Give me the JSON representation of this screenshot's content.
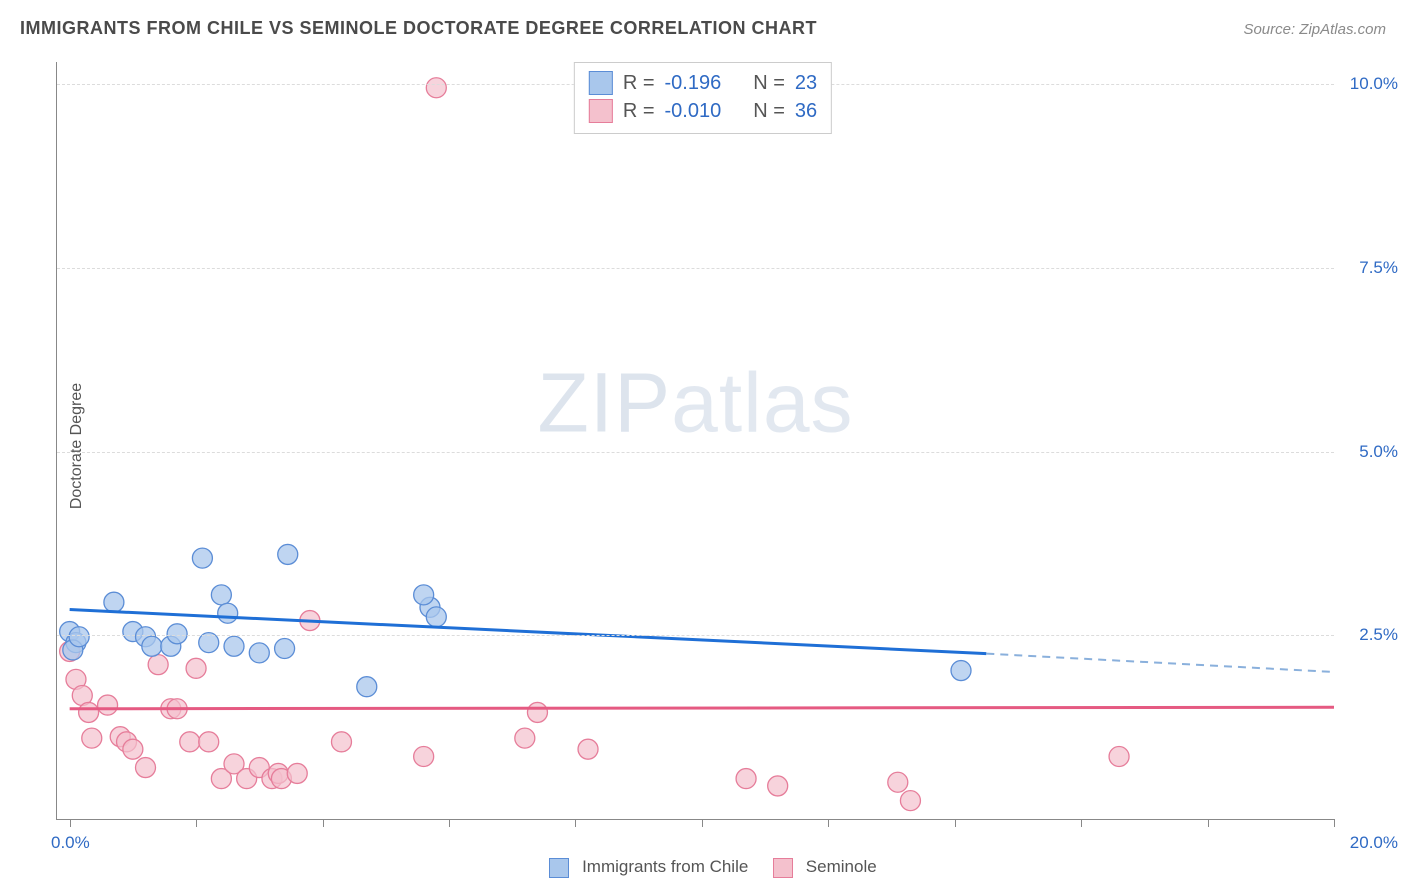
{
  "header": {
    "title": "IMMIGRANTS FROM CHILE VS SEMINOLE DOCTORATE DEGREE CORRELATION CHART",
    "source_label": "Source: ZipAtlas.com"
  },
  "watermark": {
    "bold": "ZIP",
    "light": "atlas"
  },
  "axes": {
    "y_title": "Doctorate Degree",
    "y_ticks": [
      {
        "value": 2.5,
        "label": "2.5%"
      },
      {
        "value": 5.0,
        "label": "5.0%"
      },
      {
        "value": 7.5,
        "label": "7.5%"
      },
      {
        "value": 10.0,
        "label": "10.0%"
      }
    ],
    "y_min": 0.0,
    "y_max": 10.3,
    "x_min": -0.2,
    "x_max": 20.0,
    "x_label_min": "0.0%",
    "x_label_max": "20.0%",
    "x_tick_positions": [
      0,
      2,
      4,
      6,
      8,
      10,
      12,
      14,
      16,
      18,
      20
    ],
    "grid_color": "#dcdcdc",
    "axis_color": "#888888"
  },
  "series": {
    "chile": {
      "label": "Immigrants from Chile",
      "fill_color": "#a9c7ec",
      "stroke_color": "#5b8dd6",
      "opacity": 0.75,
      "marker_radius": 10,
      "trend_line": {
        "x1": 0.0,
        "y1": 2.85,
        "x2": 14.5,
        "y2": 2.25,
        "color": "#1f6fd6",
        "width": 3
      },
      "trend_dash": {
        "x1": 14.5,
        "y1": 2.25,
        "x2": 20.0,
        "y2": 2.0,
        "color": "#8ab0dc",
        "width": 2,
        "dash": "8 6"
      },
      "R_label": "R =",
      "R_value": "-0.196",
      "N_label": "N =",
      "N_value": "23",
      "points": [
        [
          0.0,
          2.55
        ],
        [
          0.1,
          2.4
        ],
        [
          0.05,
          2.3
        ],
        [
          0.15,
          2.48
        ],
        [
          0.7,
          2.95
        ],
        [
          1.0,
          2.55
        ],
        [
          1.2,
          2.48
        ],
        [
          1.3,
          2.35
        ],
        [
          1.6,
          2.35
        ],
        [
          1.7,
          2.52
        ],
        [
          2.1,
          3.55
        ],
        [
          2.2,
          2.4
        ],
        [
          2.4,
          3.05
        ],
        [
          2.5,
          2.8
        ],
        [
          2.6,
          2.35
        ],
        [
          3.0,
          2.26
        ],
        [
          3.45,
          3.6
        ],
        [
          3.4,
          2.32
        ],
        [
          4.7,
          1.8
        ],
        [
          5.7,
          2.88
        ],
        [
          5.6,
          3.05
        ],
        [
          5.8,
          2.75
        ],
        [
          14.1,
          2.02
        ]
      ]
    },
    "seminole": {
      "label": "Seminole",
      "fill_color": "#f4c1cd",
      "stroke_color": "#e67d9a",
      "opacity": 0.7,
      "marker_radius": 10,
      "trend_line": {
        "x1": 0.0,
        "y1": 1.5,
        "x2": 20.0,
        "y2": 1.52,
        "color": "#e55a82",
        "width": 3
      },
      "R_label": "R =",
      "R_value": "-0.010",
      "N_label": "N =",
      "N_value": "36",
      "points": [
        [
          0.0,
          2.28
        ],
        [
          0.1,
          1.9
        ],
        [
          0.2,
          1.68
        ],
        [
          0.3,
          1.45
        ],
        [
          0.35,
          1.1
        ],
        [
          0.6,
          1.55
        ],
        [
          0.8,
          1.12
        ],
        [
          0.9,
          1.05
        ],
        [
          1.0,
          0.95
        ],
        [
          1.2,
          0.7
        ],
        [
          1.4,
          2.1
        ],
        [
          1.6,
          1.5
        ],
        [
          1.7,
          1.5
        ],
        [
          1.9,
          1.05
        ],
        [
          2.0,
          2.05
        ],
        [
          2.2,
          1.05
        ],
        [
          2.4,
          0.55
        ],
        [
          2.6,
          0.75
        ],
        [
          2.8,
          0.55
        ],
        [
          3.0,
          0.7
        ],
        [
          3.2,
          0.55
        ],
        [
          3.3,
          0.62
        ],
        [
          3.35,
          0.55
        ],
        [
          3.6,
          0.62
        ],
        [
          3.8,
          2.7
        ],
        [
          4.3,
          1.05
        ],
        [
          5.6,
          0.85
        ],
        [
          5.8,
          9.95
        ],
        [
          7.2,
          1.1
        ],
        [
          7.4,
          1.45
        ],
        [
          8.2,
          0.95
        ],
        [
          10.7,
          0.55
        ],
        [
          11.2,
          0.45
        ],
        [
          13.1,
          0.5
        ],
        [
          13.3,
          0.25
        ],
        [
          16.6,
          0.85
        ]
      ]
    }
  },
  "legend_top": {
    "border_color": "#cccccc",
    "bg_color": "#ffffff"
  },
  "colors": {
    "title_color": "#4a4a4a",
    "source_color": "#8a8a8a",
    "tick_label_color": "#2f6ac4",
    "bg": "#ffffff"
  }
}
